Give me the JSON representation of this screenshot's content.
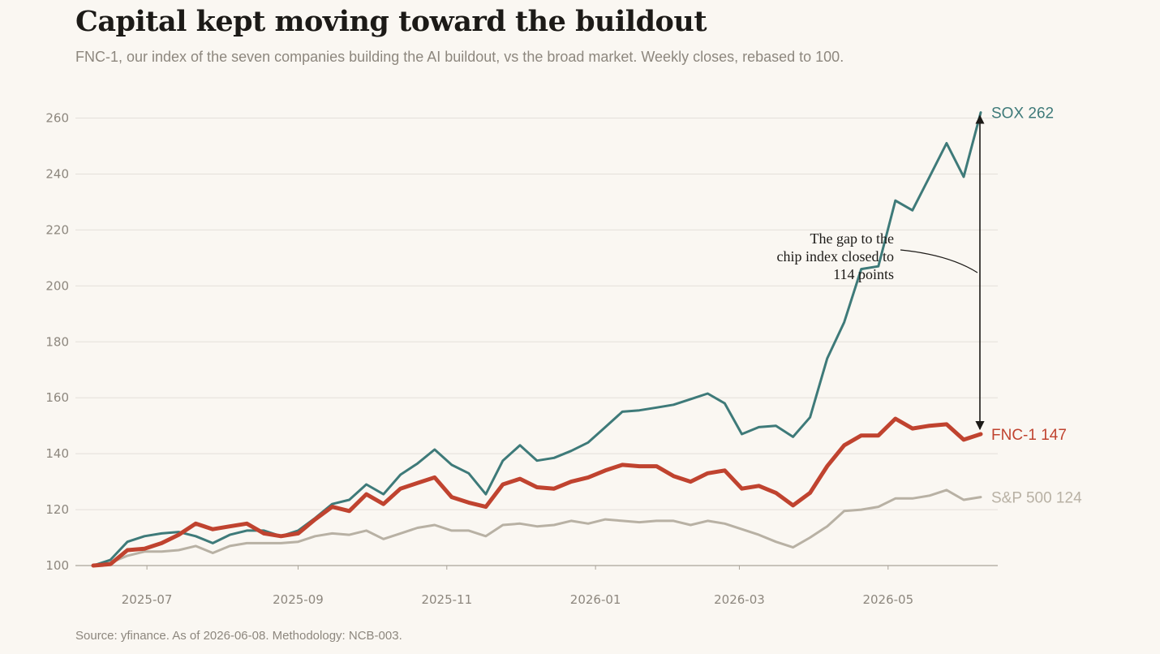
{
  "title": "Capital kept moving toward the buildout",
  "subtitle": "FNC-1, our index of the seven companies building the AI buildout, vs the broad market. Weekly closes, rebased to 100.",
  "source": "Source: yfinance. As of 2026-06-08. Methodology: NCB-003.",
  "colors": {
    "sox": "#3e7a79",
    "fnc": "#c0432f",
    "spx": "#b8b1a4",
    "grid": "#e4e0da",
    "text": "#8d877e"
  },
  "chart_data": {
    "type": "line",
    "xlabel": "",
    "ylabel": "",
    "ylim": [
      100,
      262
    ],
    "yticks": [
      100,
      120,
      140,
      160,
      180,
      200,
      220,
      240,
      260
    ],
    "xticks": [
      "2025-07",
      "2025-09",
      "2025-11",
      "2026-01",
      "2026-03",
      "2026-05"
    ],
    "grid": "horizontal",
    "x": [
      "2025-06-09",
      "2025-06-16",
      "2025-06-23",
      "2025-06-30",
      "2025-07-07",
      "2025-07-14",
      "2025-07-21",
      "2025-07-28",
      "2025-08-04",
      "2025-08-11",
      "2025-08-18",
      "2025-08-25",
      "2025-09-01",
      "2025-09-08",
      "2025-09-15",
      "2025-09-22",
      "2025-09-29",
      "2025-10-06",
      "2025-10-13",
      "2025-10-20",
      "2025-10-27",
      "2025-11-03",
      "2025-11-10",
      "2025-11-17",
      "2025-11-24",
      "2025-12-01",
      "2025-12-08",
      "2025-12-15",
      "2025-12-22",
      "2025-12-29",
      "2026-01-05",
      "2026-01-12",
      "2026-01-19",
      "2026-01-26",
      "2026-02-02",
      "2026-02-09",
      "2026-02-16",
      "2026-02-23",
      "2026-03-02",
      "2026-03-09",
      "2026-03-16",
      "2026-03-23",
      "2026-03-30",
      "2026-04-06",
      "2026-04-13",
      "2026-04-20",
      "2026-04-27",
      "2026-05-04",
      "2026-05-11",
      "2026-05-18",
      "2026-05-25",
      "2026-06-01",
      "2026-06-08"
    ],
    "series": [
      {
        "name": "SOX",
        "end_label": "SOX  262",
        "values": [
          100,
          102,
          108.5,
          110.5,
          111.5,
          112,
          110.5,
          108,
          111,
          112.5,
          112.5,
          110.5,
          112.5,
          117,
          122,
          123.5,
          129,
          125.5,
          132.5,
          136.5,
          141.5,
          136,
          133,
          125.5,
          137.5,
          143,
          137.5,
          138.5,
          141,
          144,
          149.5,
          155,
          155.5,
          156.5,
          157.5,
          159.5,
          161.5,
          158,
          147,
          149.5,
          150,
          146,
          153,
          174,
          187,
          206,
          207,
          230.5,
          227,
          239,
          251,
          239,
          262
        ]
      },
      {
        "name": "FNC-1",
        "end_label": "FNC-1  147",
        "values": [
          100,
          100.5,
          105.5,
          106,
          108,
          111,
          115,
          113,
          114,
          115,
          111.5,
          110.5,
          111.5,
          116.5,
          121,
          119.5,
          125.5,
          122,
          127.5,
          129.5,
          131.5,
          124.5,
          122.5,
          121,
          129,
          131,
          128,
          127.5,
          130,
          131.5,
          134,
          136,
          135.5,
          135.5,
          132,
          130,
          133,
          134,
          127.5,
          128.5,
          126,
          121.5,
          126,
          135.5,
          143,
          146.5,
          146.5,
          152.5,
          149,
          150,
          150.5,
          145,
          147
        ]
      },
      {
        "name": "S&P 500",
        "end_label": "S&P 500  124",
        "values": [
          100,
          101,
          103.5,
          105,
          105,
          105.5,
          107,
          104.5,
          107,
          108,
          108,
          108,
          108.5,
          110.5,
          111.5,
          111,
          112.5,
          109.5,
          111.5,
          113.5,
          114.5,
          112.5,
          112.5,
          110.5,
          114.5,
          115,
          114,
          114.5,
          116,
          115,
          116.5,
          116,
          115.5,
          116,
          116,
          114.5,
          116,
          115,
          113,
          111,
          108.5,
          106.5,
          110,
          114,
          119.5,
          120,
          121,
          124,
          124,
          125,
          127,
          123.5,
          124.5
        ]
      }
    ],
    "annotation": {
      "lines": [
        "The gap to the",
        "chip index closed to",
        "114 points"
      ],
      "gap": 114
    }
  }
}
